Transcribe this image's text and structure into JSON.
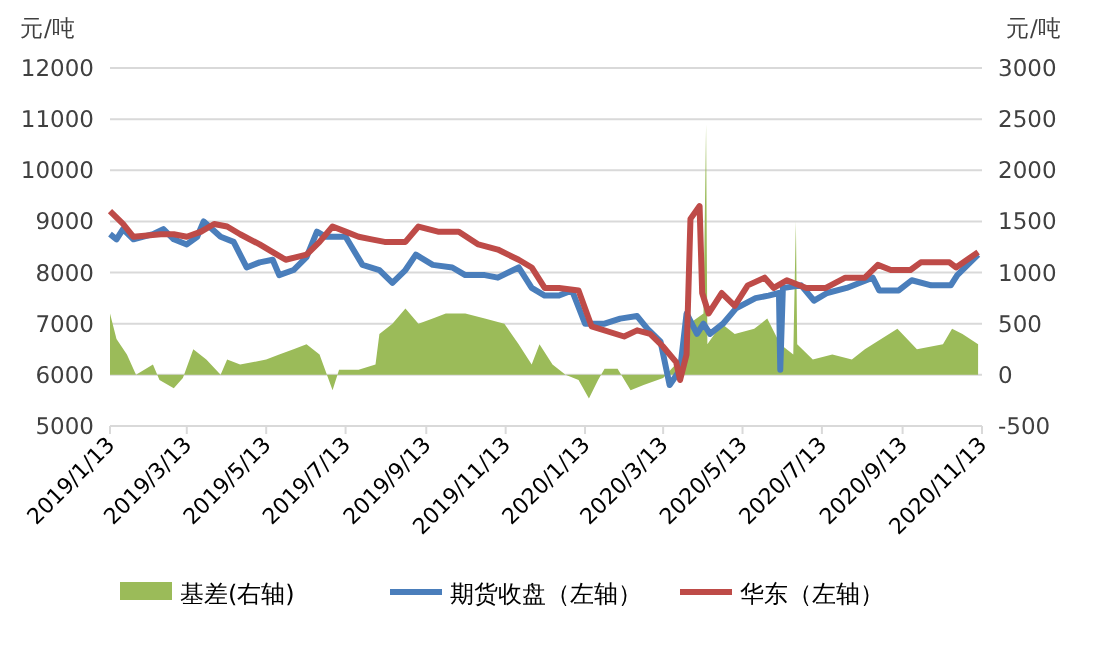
{
  "chart_data": {
    "type": "line",
    "ylabel": "元/吨",
    "y2label": "元/吨",
    "xlim": [
      "2019-01-13",
      "2020-11-13"
    ],
    "xticks": [
      {
        "value": "2019-01-13",
        "label": "2019/1/13"
      },
      {
        "value": "2019-03-13",
        "label": "2019/3/13"
      },
      {
        "value": "2019-05-13",
        "label": "2019/5/13"
      },
      {
        "value": "2019-07-13",
        "label": "2019/7/13"
      },
      {
        "value": "2019-09-13",
        "label": "2019/9/13"
      },
      {
        "value": "2019-11-13",
        "label": "2019/11/13"
      },
      {
        "value": "2020-01-13",
        "label": "2020/1/13"
      },
      {
        "value": "2020-03-13",
        "label": "2020/3/13"
      },
      {
        "value": "2020-05-13",
        "label": "2020/5/13"
      },
      {
        "value": "2020-07-13",
        "label": "2020/7/13"
      },
      {
        "value": "2020-09-13",
        "label": "2020/9/13"
      },
      {
        "value": "2020-11-13",
        "label": "2020/11/13"
      }
    ],
    "ylim": [
      5000,
      12000
    ],
    "yticks": [
      5000,
      6000,
      7000,
      8000,
      9000,
      10000,
      11000,
      12000
    ],
    "y2lim": [
      -500,
      3000
    ],
    "y2ticks": [
      -500,
      0,
      500,
      1000,
      1500,
      2000,
      2500,
      3000
    ],
    "grid": "y",
    "legend": "bottom",
    "series": [
      {
        "name": "基差(右轴)",
        "type": "area",
        "axis": "y2",
        "color": "#9bbb59",
        "x": [
          "2019-01-13",
          "2019-01-18",
          "2019-01-26",
          "2019-02-02",
          "2019-02-15",
          "2019-02-20",
          "2019-03-03",
          "2019-03-10",
          "2019-03-18",
          "2019-03-28",
          "2019-04-08",
          "2019-04-13",
          "2019-04-23",
          "2019-05-13",
          "2019-05-23",
          "2019-06-03",
          "2019-06-13",
          "2019-06-23",
          "2019-07-03",
          "2019-07-08",
          "2019-07-23",
          "2019-08-05",
          "2019-08-08",
          "2019-08-18",
          "2019-08-28",
          "2019-09-07",
          "2019-09-18",
          "2019-09-28",
          "2019-10-13",
          "2019-10-28",
          "2019-11-12",
          "2019-11-23",
          "2019-12-03",
          "2019-12-09",
          "2019-12-19",
          "2019-12-29",
          "2020-01-08",
          "2020-01-16",
          "2020-01-23",
          "2020-01-28",
          "2020-02-07",
          "2020-02-17",
          "2020-02-27",
          "2020-03-13",
          "2020-03-26",
          "2020-04-02",
          "2020-04-13",
          "2020-04-15",
          "2020-04-16",
          "2020-04-27",
          "2020-05-07",
          "2020-05-22",
          "2020-06-01",
          "2020-06-11",
          "2020-06-21",
          "2020-06-23",
          "2020-06-24",
          "2020-07-06",
          "2020-07-21",
          "2020-08-05",
          "2020-08-15",
          "2020-09-09",
          "2020-09-24",
          "2020-10-14",
          "2020-10-21",
          "2020-10-29",
          "2020-11-10"
        ],
        "values": [
          600,
          350,
          200,
          0,
          100,
          -50,
          -130,
          -30,
          250,
          150,
          0,
          150,
          100,
          150,
          200,
          250,
          300,
          200,
          -150,
          50,
          50,
          100,
          400,
          500,
          650,
          500,
          550,
          600,
          600,
          550,
          500,
          300,
          100,
          300,
          100,
          0,
          -50,
          -230,
          -50,
          60,
          60,
          -150,
          -100,
          -30,
          150,
          500,
          600,
          2450,
          300,
          500,
          400,
          450,
          550,
          300,
          200,
          1500,
          300,
          150,
          200,
          150,
          250,
          450,
          250,
          300,
          450,
          400,
          300
        ]
      },
      {
        "name": "期货收盘（左轴）",
        "color": "#4a7ebb",
        "x": [
          "2019-01-13",
          "2019-01-18",
          "2019-01-23",
          "2019-01-31",
          "2019-02-15",
          "2019-02-23",
          "2019-03-03",
          "2019-03-13",
          "2019-03-21",
          "2019-03-26",
          "2019-04-08",
          "2019-04-18",
          "2019-04-28",
          "2019-05-08",
          "2019-05-18",
          "2019-05-23",
          "2019-06-03",
          "2019-06-13",
          "2019-06-21",
          "2019-06-28",
          "2019-07-13",
          "2019-07-26",
          "2019-08-08",
          "2019-08-18",
          "2019-08-28",
          "2019-09-05",
          "2019-09-18",
          "2019-10-03",
          "2019-10-13",
          "2019-10-28",
          "2019-11-07",
          "2019-11-23",
          "2019-12-03",
          "2019-12-13",
          "2019-12-24",
          "2020-01-03",
          "2020-01-13",
          "2020-01-28",
          "2020-02-09",
          "2020-02-22",
          "2020-03-01",
          "2020-03-11",
          "2020-03-18",
          "2020-03-26",
          "2020-03-31",
          "2020-04-08",
          "2020-04-13",
          "2020-04-18",
          "2020-04-28",
          "2020-05-08",
          "2020-05-23",
          "2020-06-02",
          "2020-06-10",
          "2020-06-11",
          "2020-06-13",
          "2020-06-27",
          "2020-07-07",
          "2020-07-17",
          "2020-08-01",
          "2020-08-21",
          "2020-08-26",
          "2020-09-10",
          "2020-09-20",
          "2020-10-05",
          "2020-10-20",
          "2020-10-25",
          "2020-11-10"
        ],
        "values": [
          8750,
          8650,
          8850,
          8650,
          8750,
          8850,
          8650,
          8550,
          8700,
          9000,
          8700,
          8600,
          8100,
          8200,
          8250,
          7950,
          8050,
          8300,
          8800,
          8700,
          8700,
          8150,
          8050,
          7800,
          8050,
          8350,
          8150,
          8100,
          7950,
          7950,
          7900,
          8100,
          7700,
          7550,
          7550,
          7650,
          7000,
          7000,
          7100,
          7150,
          6900,
          6650,
          5800,
          6100,
          7200,
          6800,
          7000,
          6800,
          7000,
          7300,
          7500,
          7550,
          7600,
          6100,
          7700,
          7750,
          7450,
          7600,
          7700,
          7900,
          7650,
          7650,
          7850,
          7750,
          7750,
          7950,
          8350
        ]
      },
      {
        "name": "华东（左轴）",
        "color": "#be4b48",
        "x": [
          "2019-01-13",
          "2019-01-23",
          "2019-01-31",
          "2019-02-21",
          "2019-03-03",
          "2019-03-13",
          "2019-03-24",
          "2019-04-03",
          "2019-04-13",
          "2019-04-23",
          "2019-05-08",
          "2019-05-18",
          "2019-05-28",
          "2019-06-13",
          "2019-06-23",
          "2019-07-03",
          "2019-07-13",
          "2019-07-23",
          "2019-08-02",
          "2019-08-12",
          "2019-08-28",
          "2019-09-07",
          "2019-09-22",
          "2019-10-08",
          "2019-10-23",
          "2019-11-07",
          "2019-11-23",
          "2019-12-03",
          "2019-12-13",
          "2019-12-24",
          "2020-01-08",
          "2020-01-18",
          "2020-02-12",
          "2020-02-22",
          "2020-03-03",
          "2020-03-13",
          "2020-03-23",
          "2020-03-26",
          "2020-03-31",
          "2020-04-03",
          "2020-04-10",
          "2020-04-12",
          "2020-04-17",
          "2020-04-27",
          "2020-05-07",
          "2020-05-17",
          "2020-05-30",
          "2020-06-06",
          "2020-06-16",
          "2020-07-01",
          "2020-07-16",
          "2020-07-31",
          "2020-08-15",
          "2020-08-25",
          "2020-09-04",
          "2020-09-19",
          "2020-09-27",
          "2020-10-19",
          "2020-10-24",
          "2020-11-10"
        ],
        "values": [
          9200,
          8950,
          8700,
          8750,
          8750,
          8700,
          8800,
          8950,
          8900,
          8750,
          8550,
          8400,
          8250,
          8350,
          8600,
          8900,
          8800,
          8700,
          8650,
          8600,
          8600,
          8900,
          8800,
          8800,
          8550,
          8450,
          8250,
          8100,
          7700,
          7700,
          7650,
          6950,
          6750,
          6870,
          6800,
          6550,
          6250,
          5900,
          6400,
          9050,
          9300,
          7600,
          7200,
          7600,
          7350,
          7750,
          7900,
          7700,
          7850,
          7700,
          7700,
          7900,
          7900,
          8150,
          8050,
          8050,
          8200,
          8200,
          8100,
          8400
        ]
      }
    ]
  }
}
